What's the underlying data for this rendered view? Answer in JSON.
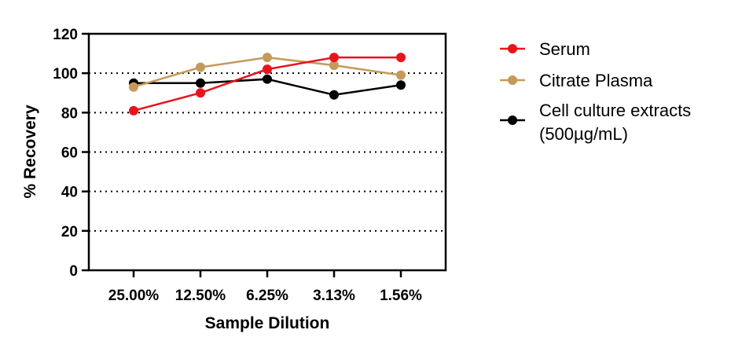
{
  "chart_data": {
    "type": "line",
    "title": "",
    "xlabel": "Sample Dilution",
    "ylabel": "% Recovery",
    "categories": [
      "25.00%",
      "12.50%",
      "6.25%",
      "3.13%",
      "1.56%"
    ],
    "ylim": [
      0,
      120
    ],
    "yticks": [
      "0",
      "20",
      "40",
      "60",
      "80",
      "100",
      "120"
    ],
    "grid": "horizontal dotted",
    "legend_position": "right",
    "series": [
      {
        "name": "Serum",
        "color": "#e8141b",
        "values": [
          81,
          90,
          102,
          108,
          108
        ]
      },
      {
        "name": "Citrate Plasma",
        "color": "#c49a5a",
        "values": [
          93,
          103,
          108,
          104,
          99
        ]
      },
      {
        "name": "Cell culture extracts (500µg/mL)",
        "legend_lines": [
          "Cell culture extracts",
          "(500µg/mL)"
        ],
        "color": "#000000",
        "values": [
          95,
          95,
          97,
          89,
          94
        ]
      }
    ]
  }
}
